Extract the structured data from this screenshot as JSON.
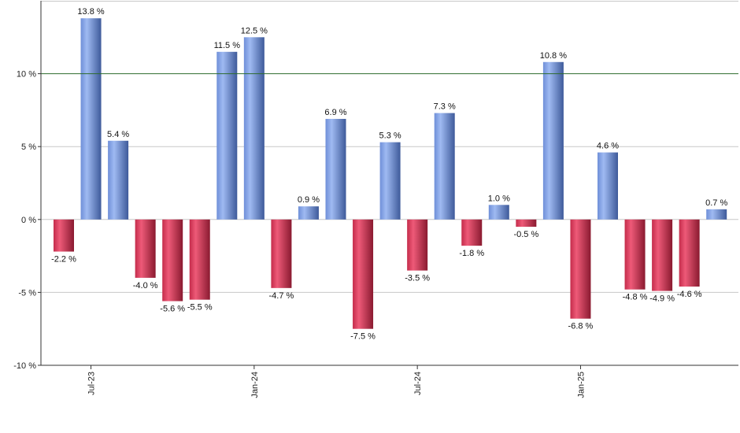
{
  "chart_data": {
    "type": "bar",
    "title": "",
    "xlabel": "",
    "ylabel": "",
    "ylim": [
      -10,
      15
    ],
    "y_ticks": [
      -10,
      -5,
      0,
      5,
      10
    ],
    "y_tick_labels": [
      "-10 %",
      "-5 %",
      "0 %",
      "5 %",
      "10 %"
    ],
    "reference_line": 10,
    "x_tick_labels": [
      {
        "label": "Jul-23",
        "index": 1
      },
      {
        "label": "Jan-24",
        "index": 7
      },
      {
        "label": "Jul-24",
        "index": 13
      },
      {
        "label": "Jan-25",
        "index": 19
      }
    ],
    "values": [
      -2.2,
      13.8,
      5.4,
      -4.0,
      -5.6,
      -5.5,
      11.5,
      12.5,
      -4.7,
      0.9,
      6.9,
      -7.5,
      5.3,
      -3.5,
      7.3,
      -1.8,
      1.0,
      -0.5,
      10.8,
      -6.8,
      4.6,
      -4.8,
      -4.9,
      -4.6,
      0.7
    ],
    "data_labels": [
      "-2.2 %",
      "13.8 %",
      "5.4 %",
      "-4.0 %",
      "-5.6 %",
      "-5.5 %",
      "11.5 %",
      "12.5 %",
      "-4.7 %",
      "0.9 %",
      "6.9 %",
      "-7.5 %",
      "5.3 %",
      "-3.5 %",
      "7.3 %",
      "-1.8 %",
      "1.0 %",
      "-0.5 %",
      "10.8 %",
      "-6.8 %",
      "4.6 %",
      "-4.8 %",
      "-4.9 %",
      "-4.6 %",
      "0.7 %"
    ],
    "grid": true,
    "colors": {
      "positive": "#7f9fe0",
      "negative": "#c8334f",
      "reference_line": "#2e6b2e",
      "grid": "#c8c8c8",
      "axis": "#333333"
    }
  }
}
